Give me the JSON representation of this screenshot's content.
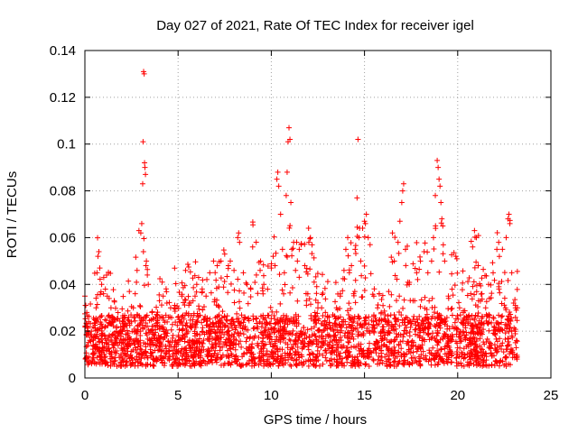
{
  "chart_data": {
    "type": "scatter",
    "title": "Day 027 of 2021, Rate Of TEC Index for receiver igel",
    "xlabel": "GPS time / hours",
    "ylabel": "ROTI / TECUs",
    "xlim": [
      0,
      25
    ],
    "ylim": [
      0,
      0.14
    ],
    "xticks": [
      0,
      5,
      10,
      15,
      20,
      25
    ],
    "xtick_labels": [
      "0",
      "5",
      "10",
      "15",
      "20",
      "25"
    ],
    "yticks": [
      0,
      0.02,
      0.04,
      0.06,
      0.08,
      0.1,
      0.12,
      0.14
    ],
    "ytick_labels": [
      "0",
      "0.02",
      "0.04",
      "0.06",
      "0.08",
      "0.1",
      "0.12",
      "0.14"
    ],
    "grid": true,
    "marker": "plus",
    "color": "#ff0000",
    "data_x_range": [
      0,
      23.2
    ],
    "series": [
      {
        "name": "ROTI",
        "points": [
          [
            0.0,
            0.035
          ],
          [
            0.05,
            0.031
          ],
          [
            0.1,
            0.028
          ],
          [
            0.2,
            0.024
          ],
          [
            0.35,
            0.02
          ],
          [
            0.5,
            0.018
          ],
          [
            0.6,
            0.03
          ],
          [
            0.65,
            0.045
          ],
          [
            0.7,
            0.052
          ],
          [
            0.75,
            0.054
          ],
          [
            0.8,
            0.047
          ],
          [
            0.9,
            0.04
          ],
          [
            1.0,
            0.036
          ],
          [
            1.1,
            0.038
          ],
          [
            1.2,
            0.035
          ],
          [
            1.3,
            0.034
          ],
          [
            1.4,
            0.03
          ],
          [
            1.5,
            0.026
          ],
          [
            1.7,
            0.022
          ],
          [
            1.9,
            0.02
          ],
          [
            2.1,
            0.022
          ],
          [
            2.3,
            0.025
          ],
          [
            2.5,
            0.024
          ],
          [
            2.6,
            0.03
          ],
          [
            2.7,
            0.036
          ],
          [
            2.8,
            0.046
          ],
          [
            2.9,
            0.063
          ],
          [
            3.0,
            0.062
          ],
          [
            3.05,
            0.066
          ],
          [
            3.1,
            0.083
          ],
          [
            3.12,
            0.101
          ],
          [
            3.15,
            0.131
          ],
          [
            3.18,
            0.13
          ],
          [
            3.2,
            0.092
          ],
          [
            3.22,
            0.09
          ],
          [
            3.25,
            0.087
          ],
          [
            3.3,
            0.05
          ],
          [
            3.35,
            0.044
          ],
          [
            3.4,
            0.04
          ],
          [
            3.6,
            0.028
          ],
          [
            3.8,
            0.026
          ],
          [
            4.0,
            0.033
          ],
          [
            4.2,
            0.035
          ],
          [
            4.4,
            0.032
          ],
          [
            4.6,
            0.03
          ],
          [
            4.8,
            0.03
          ],
          [
            5.0,
            0.026
          ],
          [
            5.2,
            0.026
          ],
          [
            5.4,
            0.046
          ],
          [
            5.6,
            0.032
          ],
          [
            5.8,
            0.033
          ],
          [
            6.0,
            0.04
          ],
          [
            6.1,
            0.043
          ],
          [
            6.3,
            0.037
          ],
          [
            6.5,
            0.035
          ],
          [
            6.7,
            0.045
          ],
          [
            6.9,
            0.05
          ],
          [
            7.1,
            0.048
          ],
          [
            7.3,
            0.05
          ],
          [
            7.5,
            0.053
          ],
          [
            7.7,
            0.048
          ],
          [
            7.8,
            0.05
          ],
          [
            8.0,
            0.046
          ],
          [
            8.2,
            0.06
          ],
          [
            8.25,
            0.062
          ],
          [
            8.3,
            0.058
          ],
          [
            8.5,
            0.045
          ],
          [
            8.7,
            0.04
          ],
          [
            8.9,
            0.038
          ],
          [
            9.0,
            0.056
          ],
          [
            9.2,
            0.044
          ],
          [
            9.4,
            0.046
          ],
          [
            9.6,
            0.04
          ],
          [
            9.8,
            0.038
          ],
          [
            10.0,
            0.047
          ],
          [
            10.1,
            0.052
          ],
          [
            10.2,
            0.048
          ],
          [
            10.3,
            0.085
          ],
          [
            10.35,
            0.088
          ],
          [
            10.4,
            0.082
          ],
          [
            10.5,
            0.07
          ],
          [
            10.6,
            0.055
          ],
          [
            10.7,
            0.045
          ],
          [
            10.8,
            0.078
          ],
          [
            10.85,
            0.088
          ],
          [
            10.9,
            0.101
          ],
          [
            10.95,
            0.107
          ],
          [
            11.0,
            0.102
          ],
          [
            11.05,
            0.075
          ],
          [
            11.1,
            0.055
          ],
          [
            11.2,
            0.058
          ],
          [
            11.3,
            0.046
          ],
          [
            11.4,
            0.05
          ],
          [
            11.5,
            0.055
          ],
          [
            11.6,
            0.057
          ],
          [
            11.8,
            0.048
          ],
          [
            12.0,
            0.064
          ],
          [
            12.1,
            0.06
          ],
          [
            12.3,
            0.041
          ],
          [
            12.5,
            0.03
          ],
          [
            12.7,
            0.03
          ],
          [
            12.9,
            0.028
          ],
          [
            13.1,
            0.026
          ],
          [
            13.3,
            0.027
          ],
          [
            13.5,
            0.03
          ],
          [
            13.7,
            0.035
          ],
          [
            13.9,
            0.046
          ],
          [
            14.0,
            0.055
          ],
          [
            14.1,
            0.06
          ],
          [
            14.3,
            0.048
          ],
          [
            14.5,
            0.055
          ],
          [
            14.6,
            0.077
          ],
          [
            14.65,
            0.102
          ],
          [
            14.7,
            0.06
          ],
          [
            14.8,
            0.05
          ],
          [
            14.9,
            0.064
          ],
          [
            15.0,
            0.067
          ],
          [
            15.05,
            0.066
          ],
          [
            15.1,
            0.07
          ],
          [
            15.2,
            0.06
          ],
          [
            15.3,
            0.057
          ],
          [
            15.5,
            0.035
          ],
          [
            15.7,
            0.03
          ],
          [
            15.9,
            0.028
          ],
          [
            16.1,
            0.027
          ],
          [
            16.3,
            0.037
          ],
          [
            16.5,
            0.062
          ],
          [
            16.6,
            0.05
          ],
          [
            16.8,
            0.058
          ],
          [
            16.9,
            0.067
          ],
          [
            17.0,
            0.075
          ],
          [
            17.05,
            0.08
          ],
          [
            17.1,
            0.083
          ],
          [
            17.2,
            0.055
          ],
          [
            17.4,
            0.04
          ],
          [
            17.6,
            0.033
          ],
          [
            17.8,
            0.045
          ],
          [
            18.0,
            0.05
          ],
          [
            18.2,
            0.054
          ],
          [
            18.4,
            0.045
          ],
          [
            18.6,
            0.05
          ],
          [
            18.7,
            0.06
          ],
          [
            18.8,
            0.078
          ],
          [
            18.9,
            0.093
          ],
          [
            18.95,
            0.09
          ],
          [
            19.0,
            0.085
          ],
          [
            19.05,
            0.082
          ],
          [
            19.1,
            0.075
          ],
          [
            19.15,
            0.068
          ],
          [
            19.2,
            0.065
          ],
          [
            19.3,
            0.05
          ],
          [
            19.5,
            0.035
          ],
          [
            19.7,
            0.038
          ],
          [
            19.9,
            0.052
          ],
          [
            20.1,
            0.03
          ],
          [
            20.3,
            0.028
          ],
          [
            20.5,
            0.026
          ],
          [
            20.7,
            0.036
          ],
          [
            20.8,
            0.056
          ],
          [
            20.9,
            0.063
          ],
          [
            21.0,
            0.06
          ],
          [
            21.1,
            0.048
          ],
          [
            21.3,
            0.036
          ],
          [
            21.5,
            0.03
          ],
          [
            21.7,
            0.034
          ],
          [
            21.9,
            0.045
          ],
          [
            22.1,
            0.055
          ],
          [
            22.2,
            0.058
          ],
          [
            22.4,
            0.055
          ],
          [
            22.6,
            0.06
          ],
          [
            22.7,
            0.068
          ],
          [
            22.75,
            0.07
          ],
          [
            22.8,
            0.066
          ],
          [
            22.9,
            0.045
          ],
          [
            23.0,
            0.032
          ],
          [
            23.1,
            0.03
          ],
          [
            23.2,
            0.03
          ]
        ]
      }
    ]
  }
}
